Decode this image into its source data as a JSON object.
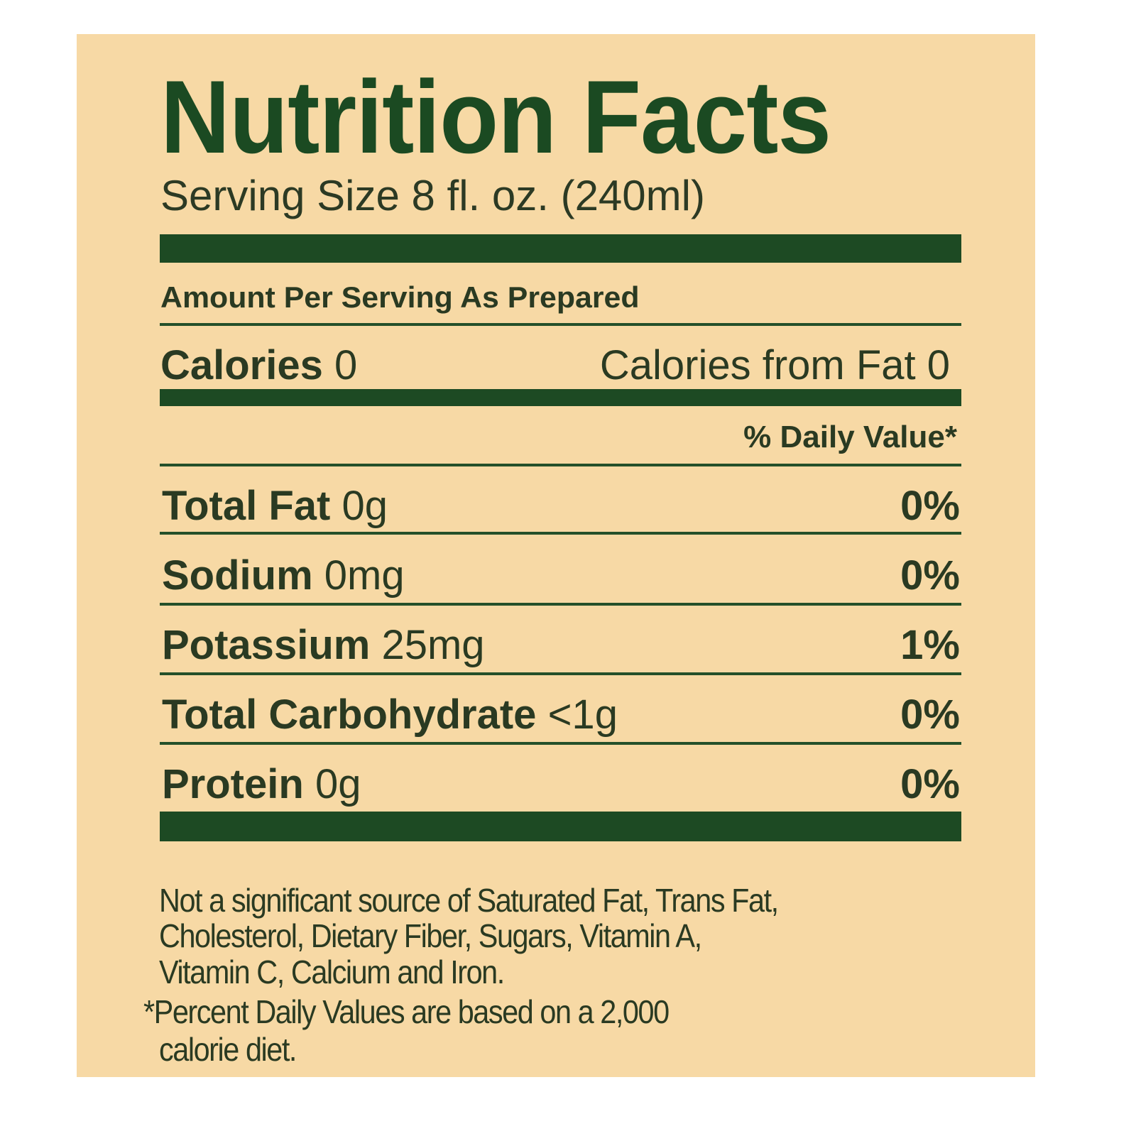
{
  "label": {
    "title": "Nutrition Facts",
    "serving_size": "Serving Size 8 fl. oz. (240ml)",
    "amount_per_serving": "Amount Per Serving As Prepared",
    "calories_label": "Calories",
    "calories_value": "0",
    "calories_from_fat": "Calories from Fat 0",
    "daily_value_header": "% Daily Value*",
    "nutrients": [
      {
        "name": "Total Fat",
        "amount": "0g",
        "dv": "0%"
      },
      {
        "name": "Sodium",
        "amount": "0mg",
        "dv": "0%"
      },
      {
        "name": "Potassium",
        "amount": "25mg",
        "dv": "1%"
      },
      {
        "name": "Total Carbohydrate",
        "amount": "<1g",
        "dv": "0%"
      },
      {
        "name": "Protein",
        "amount": "0g",
        "dv": "0%"
      }
    ],
    "footnote_lines": [
      "Not a significant source of Saturated Fat, Trans Fat,",
      "Cholesterol, Dietary Fiber, Sugars, Vitamin A,",
      "Vitamin C, Calcium and Iron.",
      "*Percent Daily Values are based on a 2,000",
      "calorie diet."
    ]
  },
  "colors": {
    "background": "#f7d9a5",
    "ink_green": "#1d4a23",
    "text": "#2a3a22"
  }
}
